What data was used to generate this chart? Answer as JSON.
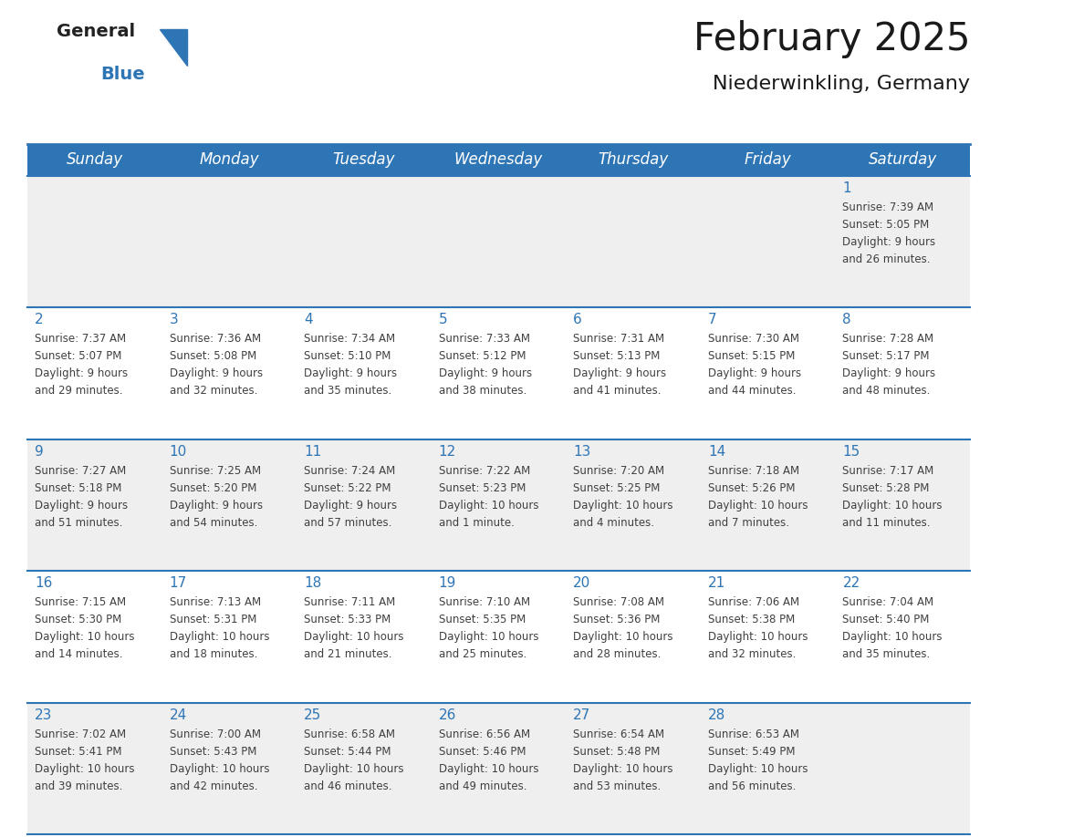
{
  "title": "February 2025",
  "subtitle": "Niederwinkling, Germany",
  "header_bg": "#2e75b6",
  "header_text_color": "#ffffff",
  "row_bg_odd": "#efefef",
  "row_bg_even": "#ffffff",
  "border_color": "#2e75b6",
  "title_color": "#1a1a1a",
  "subtitle_color": "#1a1a1a",
  "num_color": "#2e75b6",
  "info_color": "#404040",
  "day_names": [
    "Sunday",
    "Monday",
    "Tuesday",
    "Wednesday",
    "Thursday",
    "Friday",
    "Saturday"
  ],
  "days": [
    {
      "day": 1,
      "col": 6,
      "row": 0,
      "sunrise": "7:39 AM",
      "sunset": "5:05 PM",
      "daylight": "9 hours and 26 minutes."
    },
    {
      "day": 2,
      "col": 0,
      "row": 1,
      "sunrise": "7:37 AM",
      "sunset": "5:07 PM",
      "daylight": "9 hours and 29 minutes."
    },
    {
      "day": 3,
      "col": 1,
      "row": 1,
      "sunrise": "7:36 AM",
      "sunset": "5:08 PM",
      "daylight": "9 hours and 32 minutes."
    },
    {
      "day": 4,
      "col": 2,
      "row": 1,
      "sunrise": "7:34 AM",
      "sunset": "5:10 PM",
      "daylight": "9 hours and 35 minutes."
    },
    {
      "day": 5,
      "col": 3,
      "row": 1,
      "sunrise": "7:33 AM",
      "sunset": "5:12 PM",
      "daylight": "9 hours and 38 minutes."
    },
    {
      "day": 6,
      "col": 4,
      "row": 1,
      "sunrise": "7:31 AM",
      "sunset": "5:13 PM",
      "daylight": "9 hours and 41 minutes."
    },
    {
      "day": 7,
      "col": 5,
      "row": 1,
      "sunrise": "7:30 AM",
      "sunset": "5:15 PM",
      "daylight": "9 hours and 44 minutes."
    },
    {
      "day": 8,
      "col": 6,
      "row": 1,
      "sunrise": "7:28 AM",
      "sunset": "5:17 PM",
      "daylight": "9 hours and 48 minutes."
    },
    {
      "day": 9,
      "col": 0,
      "row": 2,
      "sunrise": "7:27 AM",
      "sunset": "5:18 PM",
      "daylight": "9 hours and 51 minutes."
    },
    {
      "day": 10,
      "col": 1,
      "row": 2,
      "sunrise": "7:25 AM",
      "sunset": "5:20 PM",
      "daylight": "9 hours and 54 minutes."
    },
    {
      "day": 11,
      "col": 2,
      "row": 2,
      "sunrise": "7:24 AM",
      "sunset": "5:22 PM",
      "daylight": "9 hours and 57 minutes."
    },
    {
      "day": 12,
      "col": 3,
      "row": 2,
      "sunrise": "7:22 AM",
      "sunset": "5:23 PM",
      "daylight": "10 hours and 1 minute."
    },
    {
      "day": 13,
      "col": 4,
      "row": 2,
      "sunrise": "7:20 AM",
      "sunset": "5:25 PM",
      "daylight": "10 hours and 4 minutes."
    },
    {
      "day": 14,
      "col": 5,
      "row": 2,
      "sunrise": "7:18 AM",
      "sunset": "5:26 PM",
      "daylight": "10 hours and 7 minutes."
    },
    {
      "day": 15,
      "col": 6,
      "row": 2,
      "sunrise": "7:17 AM",
      "sunset": "5:28 PM",
      "daylight": "10 hours and 11 minutes."
    },
    {
      "day": 16,
      "col": 0,
      "row": 3,
      "sunrise": "7:15 AM",
      "sunset": "5:30 PM",
      "daylight": "10 hours and 14 minutes."
    },
    {
      "day": 17,
      "col": 1,
      "row": 3,
      "sunrise": "7:13 AM",
      "sunset": "5:31 PM",
      "daylight": "10 hours and 18 minutes."
    },
    {
      "day": 18,
      "col": 2,
      "row": 3,
      "sunrise": "7:11 AM",
      "sunset": "5:33 PM",
      "daylight": "10 hours and 21 minutes."
    },
    {
      "day": 19,
      "col": 3,
      "row": 3,
      "sunrise": "7:10 AM",
      "sunset": "5:35 PM",
      "daylight": "10 hours and 25 minutes."
    },
    {
      "day": 20,
      "col": 4,
      "row": 3,
      "sunrise": "7:08 AM",
      "sunset": "5:36 PM",
      "daylight": "10 hours and 28 minutes."
    },
    {
      "day": 21,
      "col": 5,
      "row": 3,
      "sunrise": "7:06 AM",
      "sunset": "5:38 PM",
      "daylight": "10 hours and 32 minutes."
    },
    {
      "day": 22,
      "col": 6,
      "row": 3,
      "sunrise": "7:04 AM",
      "sunset": "5:40 PM",
      "daylight": "10 hours and 35 minutes."
    },
    {
      "day": 23,
      "col": 0,
      "row": 4,
      "sunrise": "7:02 AM",
      "sunset": "5:41 PM",
      "daylight": "10 hours and 39 minutes."
    },
    {
      "day": 24,
      "col": 1,
      "row": 4,
      "sunrise": "7:00 AM",
      "sunset": "5:43 PM",
      "daylight": "10 hours and 42 minutes."
    },
    {
      "day": 25,
      "col": 2,
      "row": 4,
      "sunrise": "6:58 AM",
      "sunset": "5:44 PM",
      "daylight": "10 hours and 46 minutes."
    },
    {
      "day": 26,
      "col": 3,
      "row": 4,
      "sunrise": "6:56 AM",
      "sunset": "5:46 PM",
      "daylight": "10 hours and 49 minutes."
    },
    {
      "day": 27,
      "col": 4,
      "row": 4,
      "sunrise": "6:54 AM",
      "sunset": "5:48 PM",
      "daylight": "10 hours and 53 minutes."
    },
    {
      "day": 28,
      "col": 5,
      "row": 4,
      "sunrise": "6:53 AM",
      "sunset": "5:49 PM",
      "daylight": "10 hours and 56 minutes."
    }
  ],
  "num_rows": 5,
  "num_cols": 7
}
